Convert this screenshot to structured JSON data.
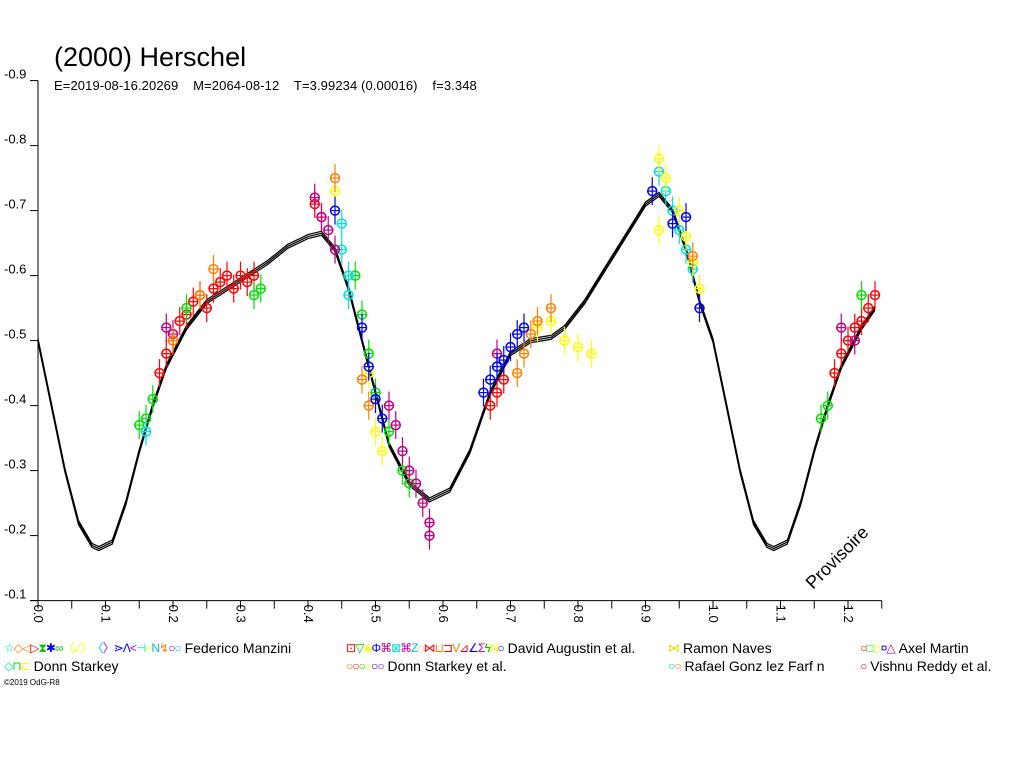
{
  "header": {
    "title": "(2000) Herschel",
    "subtitle": "E=2019-08-16.20269    M=2064-08-12    T=3.99234 (0.00016)    f=3.348"
  },
  "watermark": "Provisoire",
  "copyright": "©2019 OdG-R8",
  "legend": [
    {
      "label": "Federico Manzini",
      "symbols": [
        [
          "☆",
          "#00e0e0"
        ],
        [
          "◇◁",
          "#ff8000"
        ],
        [
          "▷",
          "#ff0000"
        ],
        [
          "⧗",
          "#00c000"
        ],
        [
          "✱",
          "#0000ff"
        ],
        [
          "∞",
          "#00c000"
        ],
        [
          "〈✓〉",
          "#ffff00"
        ],
        [
          "〈",
          "#00c0ff"
        ],
        [
          "〉",
          "#c000c0"
        ],
        [
          "⋗Λ",
          "#0000ff"
        ],
        [
          "<",
          "#c000c0"
        ],
        [
          "⊣",
          "#00e0e0"
        ],
        [
          "⌐",
          "#ffff00"
        ],
        [
          "N",
          "#00c0c0"
        ],
        [
          "↯",
          "#ff8000"
        ],
        [
          "○",
          "#c00080"
        ],
        [
          "○",
          "#00c0ff"
        ]
      ]
    },
    {
      "label": "David Augustin et al.",
      "symbols": [
        [
          "⊡",
          "#ff0000"
        ],
        [
          "▽",
          "#00c000"
        ],
        [
          "◈",
          "#ffff00"
        ],
        [
          "Φ",
          "#0000ff"
        ],
        [
          "⌘",
          "#c00080"
        ],
        [
          "⊠",
          "#00e0e0"
        ],
        [
          "⌘",
          "#c000c0"
        ],
        [
          "Z",
          "#00c0c0"
        ],
        [
          "◌",
          "#ff8000"
        ],
        [
          "⋈",
          "#ff0000"
        ],
        [
          "⊔",
          "#ff8000"
        ],
        [
          "⊐",
          "#ff0000"
        ],
        [
          "V",
          "#ff8000"
        ],
        [
          "⊿",
          "#ff0000"
        ],
        [
          "∠",
          "#0000ff"
        ],
        [
          "Σ",
          "#c00080"
        ],
        [
          "ϟ",
          "#00c000"
        ],
        [
          "N",
          "#ffff00"
        ],
        [
          "○",
          "#0000ff"
        ]
      ]
    },
    {
      "label": "Ramon Naves",
      "symbols": [
        [
          "⋈",
          "#e0e000"
        ]
      ]
    },
    {
      "label": "Axel Martin",
      "symbols": [
        [
          "○",
          "#ff0000"
        ],
        [
          "□",
          "#00e000"
        ],
        [
          "◇",
          "#ffff00"
        ],
        [
          "¤",
          "#0000ff"
        ],
        [
          "△",
          "#c00080"
        ]
      ]
    },
    {
      "label": "Donn Starkey",
      "symbols": [
        [
          "◇",
          "#00e0e0"
        ],
        [
          "⊓",
          "#00e000"
        ],
        [
          "⊏",
          "#ffff00"
        ]
      ]
    },
    {
      "label": "Donn Starkey et al.",
      "symbols": [
        [
          "○",
          "#ff8000"
        ],
        [
          "○",
          "#ff0000"
        ],
        [
          "○",
          "#00e000"
        ],
        [
          "○",
          "#ffff00"
        ],
        [
          "○",
          "#0000ff"
        ],
        [
          "○",
          "#c00080"
        ]
      ]
    },
    {
      "label": "Rafael Gonz lez Farf n",
      "symbols": [
        [
          "○",
          "#00e0e0"
        ],
        [
          "○",
          "#ff8000"
        ]
      ]
    },
    {
      "label": "Vishnu Reddy et al.",
      "symbols": [
        [
          "○",
          "#ff0000"
        ]
      ]
    }
  ],
  "chart_data": {
    "type": "scatter",
    "title": "(2000) Herschel",
    "xlabel": "",
    "ylabel": "",
    "xlim": [
      0.0,
      1.25
    ],
    "ylim": [
      -0.9,
      -0.1
    ],
    "y_inverted": true,
    "grid": false,
    "legend_placement": "bottom",
    "x_ticks": [
      "0.0",
      "0.1",
      "0.2",
      "0.3",
      "0.4",
      "0.5",
      "0.6",
      "0.7",
      "0.8",
      "0.9",
      "1.0",
      "1.1",
      "1.2"
    ],
    "y_ticks": [
      "-0.9",
      "-0.8",
      "-0.7",
      "-0.6",
      "-0.5",
      "-0.4",
      "-0.3",
      "-0.2",
      "-0.1"
    ],
    "model_curve": {
      "color": "#000000",
      "points": [
        [
          0.0,
          -0.5
        ],
        [
          0.02,
          -0.4
        ],
        [
          0.04,
          -0.3
        ],
        [
          0.06,
          -0.22
        ],
        [
          0.08,
          -0.185
        ],
        [
          0.09,
          -0.18
        ],
        [
          0.11,
          -0.19
        ],
        [
          0.13,
          -0.25
        ],
        [
          0.15,
          -0.33
        ],
        [
          0.17,
          -0.4
        ],
        [
          0.19,
          -0.46
        ],
        [
          0.22,
          -0.52
        ],
        [
          0.25,
          -0.56
        ],
        [
          0.28,
          -0.58
        ],
        [
          0.31,
          -0.6
        ],
        [
          0.34,
          -0.62
        ],
        [
          0.37,
          -0.645
        ],
        [
          0.4,
          -0.66
        ],
        [
          0.42,
          -0.665
        ],
        [
          0.44,
          -0.64
        ],
        [
          0.46,
          -0.58
        ],
        [
          0.48,
          -0.5
        ],
        [
          0.5,
          -0.42
        ],
        [
          0.52,
          -0.34
        ],
        [
          0.55,
          -0.28
        ],
        [
          0.58,
          -0.255
        ],
        [
          0.61,
          -0.27
        ],
        [
          0.64,
          -0.33
        ],
        [
          0.67,
          -0.42
        ],
        [
          0.7,
          -0.48
        ],
        [
          0.73,
          -0.5
        ],
        [
          0.76,
          -0.505
        ],
        [
          0.78,
          -0.52
        ],
        [
          0.81,
          -0.56
        ],
        [
          0.84,
          -0.61
        ],
        [
          0.87,
          -0.66
        ],
        [
          0.9,
          -0.71
        ],
        [
          0.92,
          -0.725
        ],
        [
          0.94,
          -0.7
        ],
        [
          0.96,
          -0.64
        ],
        [
          0.98,
          -0.56
        ],
        [
          1.0,
          -0.5
        ],
        [
          1.02,
          -0.4
        ],
        [
          1.04,
          -0.3
        ],
        [
          1.06,
          -0.22
        ],
        [
          1.08,
          -0.185
        ],
        [
          1.09,
          -0.18
        ],
        [
          1.11,
          -0.19
        ],
        [
          1.13,
          -0.25
        ],
        [
          1.15,
          -0.33
        ],
        [
          1.17,
          -0.4
        ],
        [
          1.19,
          -0.46
        ],
        [
          1.22,
          -0.52
        ],
        [
          1.24,
          -0.55
        ]
      ]
    },
    "series": [
      {
        "color": "#ff0000",
        "points": [
          [
            0.18,
            -0.45
          ],
          [
            0.19,
            -0.48
          ],
          [
            0.2,
            -0.5
          ],
          [
            0.21,
            -0.53
          ],
          [
            0.22,
            -0.54
          ],
          [
            0.23,
            -0.56
          ],
          [
            0.24,
            -0.57
          ],
          [
            0.25,
            -0.55
          ],
          [
            0.26,
            -0.58
          ],
          [
            0.27,
            -0.59
          ],
          [
            0.28,
            -0.6
          ],
          [
            0.29,
            -0.58
          ],
          [
            0.3,
            -0.6
          ],
          [
            0.31,
            -0.59
          ],
          [
            0.32,
            -0.6
          ],
          [
            0.41,
            -0.71
          ],
          [
            0.42,
            -0.69
          ],
          [
            0.67,
            -0.4
          ],
          [
            0.68,
            -0.42
          ],
          [
            0.69,
            -0.44
          ],
          [
            1.18,
            -0.45
          ],
          [
            1.19,
            -0.48
          ],
          [
            1.2,
            -0.5
          ],
          [
            1.21,
            -0.52
          ],
          [
            1.22,
            -0.53
          ],
          [
            1.23,
            -0.55
          ],
          [
            1.24,
            -0.57
          ]
        ]
      },
      {
        "color": "#00e000",
        "points": [
          [
            0.15,
            -0.37
          ],
          [
            0.16,
            -0.38
          ],
          [
            0.17,
            -0.41
          ],
          [
            0.22,
            -0.55
          ],
          [
            0.32,
            -0.57
          ],
          [
            0.33,
            -0.58
          ],
          [
            0.47,
            -0.6
          ],
          [
            0.48,
            -0.54
          ],
          [
            0.49,
            -0.48
          ],
          [
            0.5,
            -0.42
          ],
          [
            0.52,
            -0.36
          ],
          [
            0.54,
            -0.3
          ],
          [
            0.55,
            -0.28
          ],
          [
            0.68,
            -0.46
          ],
          [
            1.16,
            -0.38
          ],
          [
            1.17,
            -0.4
          ],
          [
            1.22,
            -0.57
          ]
        ]
      },
      {
        "color": "#00e0e0",
        "points": [
          [
            0.16,
            -0.36
          ],
          [
            0.45,
            -0.68
          ],
          [
            0.45,
            -0.64
          ],
          [
            0.46,
            -0.6
          ],
          [
            0.46,
            -0.57
          ],
          [
            0.92,
            -0.76
          ],
          [
            0.93,
            -0.73
          ],
          [
            0.94,
            -0.7
          ],
          [
            0.95,
            -0.67
          ],
          [
            0.96,
            -0.64
          ],
          [
            0.97,
            -0.61
          ]
        ]
      },
      {
        "color": "#c00080",
        "points": [
          [
            0.19,
            -0.52
          ],
          [
            0.2,
            -0.51
          ],
          [
            0.41,
            -0.72
          ],
          [
            0.42,
            -0.69
          ],
          [
            0.43,
            -0.67
          ],
          [
            0.44,
            -0.64
          ],
          [
            0.52,
            -0.4
          ],
          [
            0.53,
            -0.37
          ],
          [
            0.54,
            -0.33
          ],
          [
            0.55,
            -0.3
          ],
          [
            0.56,
            -0.28
          ],
          [
            0.57,
            -0.25
          ],
          [
            0.58,
            -0.22
          ],
          [
            0.58,
            -0.2
          ],
          [
            0.68,
            -0.48
          ],
          [
            1.19,
            -0.52
          ],
          [
            1.21,
            -0.5
          ]
        ]
      },
      {
        "color": "#ffff00",
        "points": [
          [
            0.44,
            -0.73
          ],
          [
            0.49,
            -0.45
          ],
          [
            0.5,
            -0.36
          ],
          [
            0.51,
            -0.33
          ],
          [
            0.74,
            -0.52
          ],
          [
            0.76,
            -0.53
          ],
          [
            0.78,
            -0.5
          ],
          [
            0.8,
            -0.49
          ],
          [
            0.82,
            -0.48
          ],
          [
            0.92,
            -0.78
          ],
          [
            0.93,
            -0.75
          ],
          [
            0.95,
            -0.7
          ],
          [
            0.96,
            -0.66
          ],
          [
            0.97,
            -0.62
          ],
          [
            0.98,
            -0.58
          ],
          [
            0.92,
            -0.67
          ]
        ]
      },
      {
        "color": "#ff8000",
        "points": [
          [
            0.2,
            -0.5
          ],
          [
            0.24,
            -0.57
          ],
          [
            0.26,
            -0.61
          ],
          [
            0.44,
            -0.75
          ],
          [
            0.48,
            -0.44
          ],
          [
            0.49,
            -0.4
          ],
          [
            0.71,
            -0.45
          ],
          [
            0.72,
            -0.48
          ],
          [
            0.73,
            -0.51
          ],
          [
            0.74,
            -0.53
          ],
          [
            0.76,
            -0.55
          ],
          [
            0.97,
            -0.63
          ]
        ]
      },
      {
        "color": "#0000ff",
        "points": [
          [
            0.44,
            -0.7
          ],
          [
            0.48,
            -0.52
          ],
          [
            0.49,
            -0.46
          ],
          [
            0.5,
            -0.41
          ],
          [
            0.51,
            -0.38
          ],
          [
            0.66,
            -0.42
          ],
          [
            0.67,
            -0.44
          ],
          [
            0.68,
            -0.46
          ],
          [
            0.69,
            -0.47
          ],
          [
            0.7,
            -0.49
          ],
          [
            0.71,
            -0.51
          ],
          [
            0.72,
            -0.52
          ],
          [
            0.91,
            -0.73
          ],
          [
            0.94,
            -0.68
          ],
          [
            0.96,
            -0.69
          ],
          [
            0.98,
            -0.55
          ]
        ]
      }
    ]
  }
}
